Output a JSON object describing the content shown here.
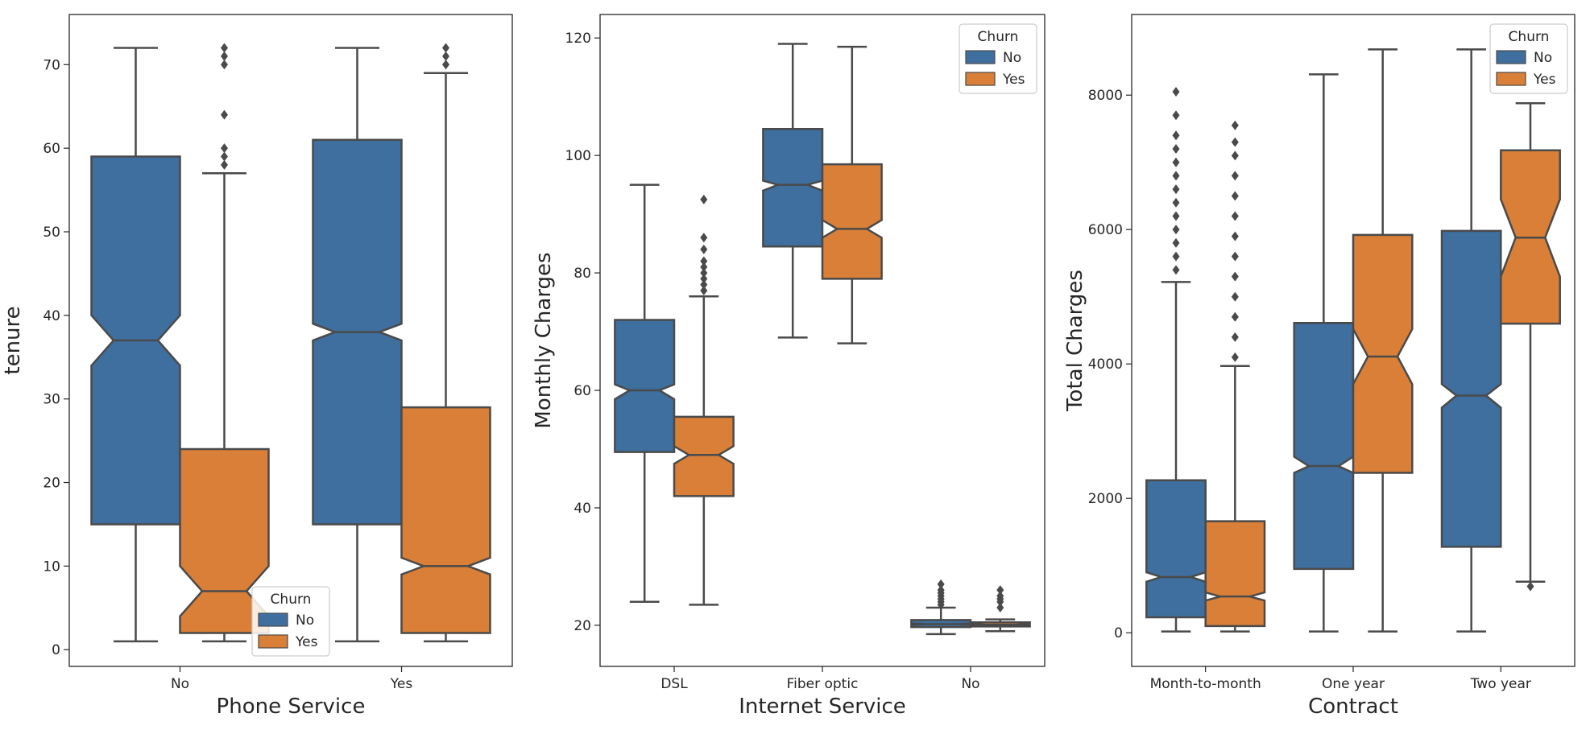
{
  "colors": {
    "no": "#3E6F9E",
    "yes": "#D97F37",
    "line": "#4A4A4A",
    "frame": "#262626"
  },
  "chart_data": [
    {
      "type": "boxplot",
      "notched": true,
      "xlabel": "Phone Service",
      "ylabel": "tenure",
      "categories": [
        "No",
        "Yes"
      ],
      "ylim": [
        -2,
        76
      ],
      "yticks": [
        0,
        10,
        20,
        30,
        40,
        50,
        60,
        70
      ],
      "legend": {
        "title": "Churn",
        "entries": [
          "No",
          "Yes"
        ],
        "placement": "bottom-center"
      },
      "series": [
        {
          "name": "No",
          "stats": [
            {
              "whislo": 1,
              "q1": 15,
              "med": 37,
              "q3": 59,
              "whishi": 72,
              "notch": [
                34,
                40
              ],
              "fliers": []
            },
            {
              "whislo": 1,
              "q1": 15,
              "med": 38,
              "q3": 61,
              "whishi": 72,
              "notch": [
                37,
                39
              ],
              "fliers": []
            }
          ]
        },
        {
          "name": "Yes",
          "stats": [
            {
              "whislo": 1,
              "q1": 2,
              "med": 7,
              "q3": 24,
              "whishi": 57,
              "notch": [
                4,
                10
              ],
              "fliers": [
                58,
                59,
                60,
                64,
                70,
                71,
                72
              ]
            },
            {
              "whislo": 1,
              "q1": 2,
              "med": 10,
              "q3": 29,
              "whishi": 69,
              "notch": [
                9,
                11
              ],
              "fliers": [
                70,
                71,
                72
              ]
            }
          ]
        }
      ]
    },
    {
      "type": "boxplot",
      "notched": true,
      "xlabel": "Internet Service",
      "ylabel": "Monthly Charges",
      "categories": [
        "DSL",
        "Fiber optic",
        "No"
      ],
      "ylim": [
        13,
        124
      ],
      "yticks": [
        20,
        40,
        60,
        80,
        100,
        120
      ],
      "legend": {
        "title": "Churn",
        "entries": [
          "No",
          "Yes"
        ],
        "placement": "top-right"
      },
      "series": [
        {
          "name": "No",
          "stats": [
            {
              "whislo": 24,
              "q1": 49.5,
              "med": 60,
              "q3": 72,
              "whishi": 95,
              "notch": [
                58.5,
                61
              ],
              "fliers": []
            },
            {
              "whislo": 69,
              "q1": 84.5,
              "med": 95,
              "q3": 104.5,
              "whishi": 119,
              "notch": [
                94,
                95.7
              ],
              "fliers": []
            },
            {
              "whislo": 18.5,
              "q1": 19.7,
              "med": 20.2,
              "q3": 20.9,
              "whishi": 23,
              "notch": [
                20.1,
                20.3
              ],
              "fliers": [
                23.5,
                24,
                24.5,
                25,
                25.5,
                26,
                27
              ]
            }
          ]
        },
        {
          "name": "Yes",
          "stats": [
            {
              "whislo": 23.5,
              "q1": 42,
              "med": 49,
              "q3": 55.5,
              "whishi": 76,
              "notch": [
                47.5,
                50.5
              ],
              "fliers": [
                77,
                78,
                79,
                80,
                81,
                82,
                84,
                86,
                92.5
              ]
            },
            {
              "whislo": 68,
              "q1": 79,
              "med": 87.5,
              "q3": 98.5,
              "whishi": 118.5,
              "notch": [
                86,
                89
              ],
              "fliers": []
            },
            {
              "whislo": 19,
              "q1": 19.8,
              "med": 20.1,
              "q3": 20.5,
              "whishi": 21,
              "notch": [
                20,
                20.3
              ],
              "fliers": [
                23,
                24,
                24.5,
                25,
                26
              ]
            }
          ]
        }
      ]
    },
    {
      "type": "boxplot",
      "notched": true,
      "xlabel": "Contract",
      "ylabel": "Total Charges",
      "categories": [
        "Month-to-month",
        "One year",
        "Two year"
      ],
      "ylim": [
        -500,
        9200
      ],
      "yticks": [
        0,
        2000,
        4000,
        6000,
        8000
      ],
      "legend": {
        "title": "Churn",
        "entries": [
          "No",
          "Yes"
        ],
        "placement": "top-right"
      },
      "series": [
        {
          "name": "No",
          "stats": [
            {
              "whislo": 20,
              "q1": 230,
              "med": 830,
              "q3": 2270,
              "whishi": 5220,
              "notch": [
                760,
                900
              ],
              "fliers": [
                5400,
                5600,
                5800,
                6000,
                6200,
                6400,
                6600,
                6800,
                7000,
                7200,
                7400,
                7700,
                8050
              ]
            },
            {
              "whislo": 20,
              "q1": 950,
              "med": 2480,
              "q3": 4610,
              "whishi": 8310,
              "notch": [
                2380,
                2620
              ],
              "fliers": []
            },
            {
              "whislo": 20,
              "q1": 1280,
              "med": 3530,
              "q3": 5980,
              "whishi": 8680,
              "notch": [
                3350,
                3700
              ],
              "fliers": []
            }
          ]
        },
        {
          "name": "Yes",
          "stats": [
            {
              "whislo": 20,
              "q1": 100,
              "med": 540,
              "q3": 1660,
              "whishi": 3970,
              "notch": [
                480,
                600
              ],
              "fliers": [
                4100,
                4400,
                4700,
                5000,
                5300,
                5600,
                5900,
                6200,
                6500,
                6800,
                7100,
                7300,
                7550
              ]
            },
            {
              "whislo": 20,
              "q1": 2380,
              "med": 4110,
              "q3": 5920,
              "whishi": 8680,
              "notch": [
                3700,
                4520
              ],
              "fliers": []
            },
            {
              "whislo": 760,
              "q1": 4600,
              "med": 5880,
              "q3": 7180,
              "whishi": 7880,
              "notch": [
                5300,
                6450
              ],
              "fliers": [
                690
              ]
            }
          ]
        }
      ]
    }
  ]
}
